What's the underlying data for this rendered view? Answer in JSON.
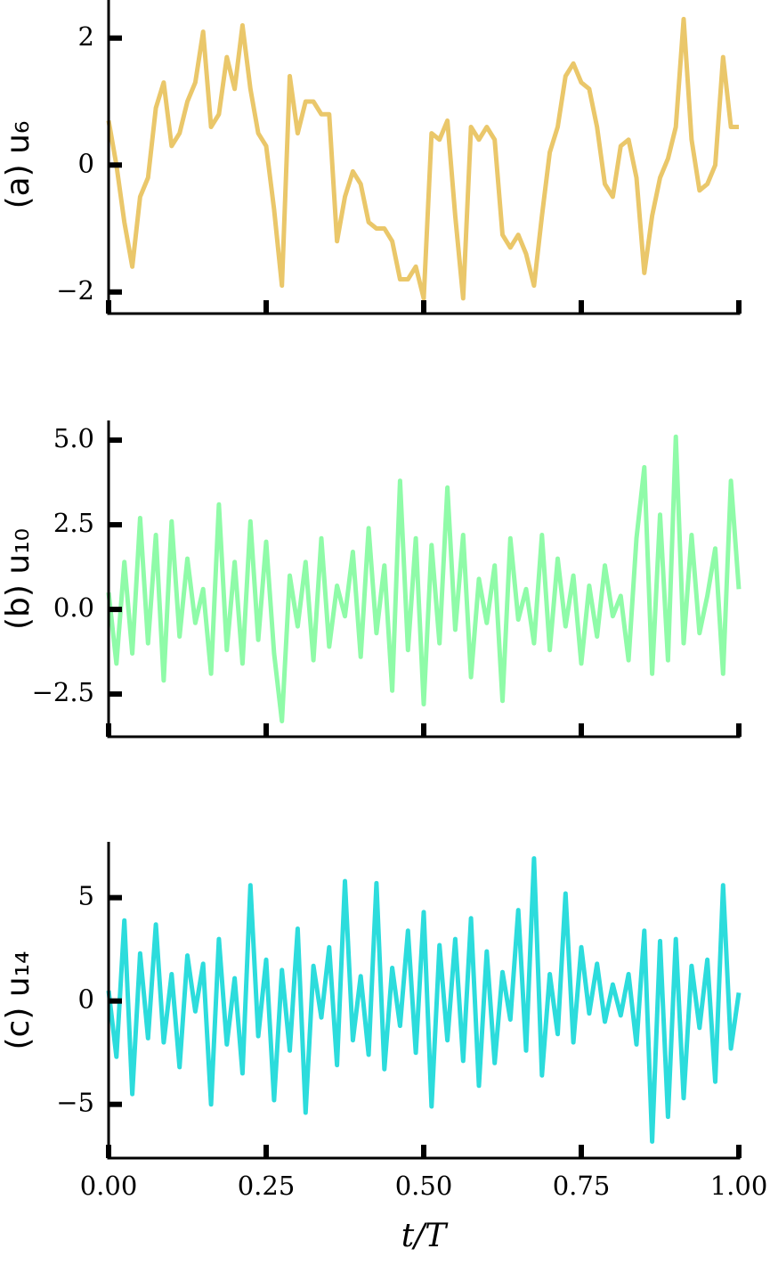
{
  "chart_data": [
    {
      "type": "line",
      "ylabel": "(a) u₆",
      "color": "#eac76a",
      "x": [
        0,
        0.0125,
        0.025,
        0.0375,
        0.05,
        0.0625,
        0.075,
        0.0875,
        0.1,
        0.1125,
        0.125,
        0.1375,
        0.15,
        0.1625,
        0.175,
        0.1875,
        0.2,
        0.2125,
        0.225,
        0.2375,
        0.25,
        0.2625,
        0.275,
        0.2875,
        0.3,
        0.3125,
        0.325,
        0.3375,
        0.35,
        0.3625,
        0.375,
        0.3875,
        0.4,
        0.4125,
        0.425,
        0.4375,
        0.45,
        0.4625,
        0.475,
        0.4875,
        0.5,
        0.5125,
        0.525,
        0.5375,
        0.55,
        0.5625,
        0.575,
        0.5875,
        0.6,
        0.6125,
        0.625,
        0.6375,
        0.65,
        0.6625,
        0.675,
        0.6875,
        0.7,
        0.7125,
        0.725,
        0.7375,
        0.75,
        0.7625,
        0.775,
        0.7875,
        0.8,
        0.8125,
        0.825,
        0.8375,
        0.85,
        0.8625,
        0.875,
        0.8875,
        0.9,
        0.9125,
        0.925,
        0.9375,
        0.95,
        0.9625,
        0.975,
        0.9875,
        1
      ],
      "values": [
        0.7,
        0.0,
        -0.9,
        -1.6,
        -0.5,
        -0.2,
        0.9,
        1.3,
        0.3,
        0.5,
        1.0,
        1.3,
        2.1,
        0.6,
        0.8,
        1.7,
        1.2,
        2.2,
        1.2,
        0.5,
        0.3,
        -0.7,
        -1.9,
        1.4,
        0.5,
        1.0,
        1.0,
        0.8,
        0.8,
        -1.2,
        -0.5,
        -0.1,
        -0.3,
        -0.9,
        -1.0,
        -1.0,
        -1.2,
        -1.8,
        -1.8,
        -1.6,
        -2.1,
        0.5,
        0.4,
        0.7,
        -0.8,
        -2.1,
        0.6,
        0.4,
        0.6,
        0.4,
        -1.1,
        -1.3,
        -1.1,
        -1.4,
        -1.9,
        -0.8,
        0.2,
        0.6,
        1.4,
        1.6,
        1.3,
        1.2,
        0.6,
        -0.3,
        -0.5,
        0.3,
        0.4,
        -0.2,
        -1.7,
        -0.8,
        -0.2,
        0.1,
        0.6,
        2.3,
        0.4,
        -0.4,
        -0.3,
        0.0,
        1.7,
        0.6,
        0.6
      ],
      "xlim": [
        0,
        1
      ],
      "xticks": [
        0,
        0.25,
        0.5,
        0.75,
        1
      ],
      "ylim": [
        -2.34,
        2.6
      ],
      "yticks": [
        {
          "value": 2,
          "label": "2"
        },
        {
          "value": 0,
          "label": "0"
        },
        {
          "value": -2,
          "label": "−2"
        }
      ]
    },
    {
      "type": "line",
      "ylabel": "(b) u₁₀",
      "color": "#8ffba8",
      "x": [
        0,
        0.0125,
        0.025,
        0.0375,
        0.05,
        0.0625,
        0.075,
        0.0875,
        0.1,
        0.1125,
        0.125,
        0.1375,
        0.15,
        0.1625,
        0.175,
        0.1875,
        0.2,
        0.2125,
        0.225,
        0.2375,
        0.25,
        0.2625,
        0.275,
        0.2875,
        0.3,
        0.3125,
        0.325,
        0.3375,
        0.35,
        0.3625,
        0.375,
        0.3875,
        0.4,
        0.4125,
        0.425,
        0.4375,
        0.45,
        0.4625,
        0.475,
        0.4875,
        0.5,
        0.5125,
        0.525,
        0.5375,
        0.55,
        0.5625,
        0.575,
        0.5875,
        0.6,
        0.6125,
        0.625,
        0.6375,
        0.65,
        0.6625,
        0.675,
        0.6875,
        0.7,
        0.7125,
        0.725,
        0.7375,
        0.75,
        0.7625,
        0.775,
        0.7875,
        0.8,
        0.8125,
        0.825,
        0.8375,
        0.85,
        0.8625,
        0.875,
        0.8875,
        0.9,
        0.9125,
        0.925,
        0.9375,
        0.95,
        0.9625,
        0.975,
        0.9875,
        1
      ],
      "values": [
        0.5,
        -1.6,
        1.4,
        -1.3,
        2.7,
        -1.0,
        2.2,
        -2.1,
        2.6,
        -0.8,
        1.5,
        -0.4,
        0.6,
        -1.9,
        3.1,
        -1.2,
        1.4,
        -1.6,
        2.6,
        -0.9,
        2.0,
        -1.3,
        -3.3,
        1.0,
        -0.5,
        1.4,
        -1.5,
        2.1,
        -1.1,
        0.7,
        -0.2,
        1.7,
        -1.4,
        2.4,
        -0.7,
        1.3,
        -2.4,
        3.8,
        -1.2,
        2.1,
        -2.8,
        1.9,
        -1.0,
        3.6,
        -0.6,
        2.2,
        -2.0,
        0.9,
        -0.4,
        1.3,
        -2.7,
        2.1,
        -0.3,
        0.6,
        -1.0,
        2.2,
        -1.2,
        1.5,
        -0.5,
        1.0,
        -1.6,
        0.7,
        -0.8,
        1.3,
        -0.2,
        0.4,
        -1.5,
        2.1,
        4.2,
        -1.9,
        2.8,
        -1.5,
        5.1,
        -1.0,
        2.2,
        -0.7,
        0.4,
        1.8,
        -1.9,
        3.8,
        0.6
      ],
      "xlim": [
        0,
        1
      ],
      "xticks": [
        0,
        0.25,
        0.5,
        0.75,
        1
      ],
      "ylim": [
        -3.76,
        5.58
      ],
      "yticks": [
        {
          "value": 5,
          "label": "5.0"
        },
        {
          "value": 2.5,
          "label": "2.5"
        },
        {
          "value": 0,
          "label": "0.0"
        },
        {
          "value": -2.5,
          "label": "−2.5"
        }
      ]
    },
    {
      "type": "line",
      "ylabel": "(c) u₁₄",
      "xlabel": "t/T",
      "color": "#2cdcdc",
      "x": [
        0,
        0.0125,
        0.025,
        0.0375,
        0.05,
        0.0625,
        0.075,
        0.0875,
        0.1,
        0.1125,
        0.125,
        0.1375,
        0.15,
        0.1625,
        0.175,
        0.1875,
        0.2,
        0.2125,
        0.225,
        0.2375,
        0.25,
        0.2625,
        0.275,
        0.2875,
        0.3,
        0.3125,
        0.325,
        0.3375,
        0.35,
        0.3625,
        0.375,
        0.3875,
        0.4,
        0.4125,
        0.425,
        0.4375,
        0.45,
        0.4625,
        0.475,
        0.4875,
        0.5,
        0.5125,
        0.525,
        0.5375,
        0.55,
        0.5625,
        0.575,
        0.5875,
        0.6,
        0.6125,
        0.625,
        0.6375,
        0.65,
        0.6625,
        0.675,
        0.6875,
        0.7,
        0.7125,
        0.725,
        0.7375,
        0.75,
        0.7625,
        0.775,
        0.7875,
        0.8,
        0.8125,
        0.825,
        0.8375,
        0.85,
        0.8625,
        0.875,
        0.8875,
        0.9,
        0.9125,
        0.925,
        0.9375,
        0.95,
        0.9625,
        0.975,
        0.9875,
        1
      ],
      "values": [
        0.5,
        -2.7,
        3.9,
        -4.5,
        2.3,
        -1.8,
        3.7,
        -2.0,
        1.3,
        -3.2,
        2.2,
        -0.5,
        1.8,
        -5.0,
        3.0,
        -2.1,
        1.1,
        -3.5,
        5.6,
        -1.7,
        2.0,
        -4.8,
        1.5,
        -2.4,
        3.5,
        -5.4,
        1.7,
        -0.8,
        2.6,
        -3.1,
        5.8,
        -1.9,
        1.2,
        -2.6,
        5.7,
        -3.3,
        1.6,
        -1.2,
        3.4,
        -2.5,
        4.3,
        -5.1,
        2.7,
        -1.9,
        3.0,
        -2.9,
        4.0,
        -4.1,
        2.4,
        -3.0,
        1.4,
        -0.9,
        4.4,
        -2.4,
        6.9,
        -3.6,
        1.3,
        -1.6,
        5.2,
        -2.0,
        2.6,
        -0.6,
        1.8,
        -1.0,
        0.8,
        -0.7,
        1.3,
        -2.1,
        3.4,
        -6.8,
        2.9,
        -5.6,
        3.0,
        -4.7,
        1.7,
        -1.3,
        2.0,
        -3.9,
        5.6,
        -2.3,
        0.4
      ],
      "xlim": [
        0,
        1
      ],
      "xticks": [
        {
          "value": 0,
          "label": "0.00"
        },
        {
          "value": 0.25,
          "label": "0.25"
        },
        {
          "value": 0.5,
          "label": "0.50"
        },
        {
          "value": 0.75,
          "label": "0.75"
        },
        {
          "value": 1,
          "label": "1.00"
        }
      ],
      "ylim": [
        -7.6,
        7.7
      ],
      "yticks": [
        {
          "value": 5,
          "label": "5"
        },
        {
          "value": 0,
          "label": "0"
        },
        {
          "value": -5,
          "label": "−5"
        }
      ]
    }
  ]
}
